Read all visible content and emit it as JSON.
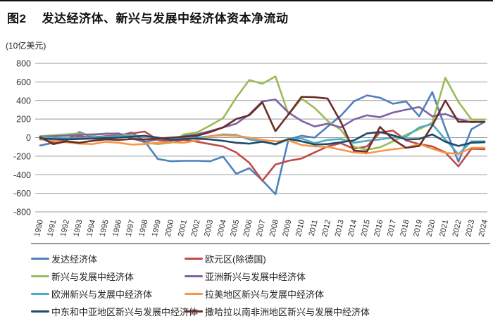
{
  "figure": {
    "label": "图2",
    "title": "发达经济体、新兴与发展中经济体资本净流动",
    "unit": "(10亿美元)"
  },
  "chart_data": {
    "type": "line",
    "title": "发达经济体、新兴与发展中经济体资本净流动",
    "unit": "10亿美元",
    "x": [
      1990,
      1991,
      1992,
      1993,
      1994,
      1995,
      1996,
      1997,
      1998,
      1999,
      2000,
      2001,
      2002,
      2003,
      2004,
      2005,
      2006,
      2007,
      2008,
      2009,
      2010,
      2011,
      2012,
      2013,
      2014,
      2015,
      2016,
      2017,
      2018,
      2019,
      2020,
      2021,
      2022,
      2023,
      2024
    ],
    "ylim": [
      -800,
      800
    ],
    "ytick_step": 200,
    "grid": true,
    "legend_position": "bottom",
    "axis_color": "#595959",
    "grid_color": "#9a9a9a",
    "series": [
      {
        "name": "发达经济体",
        "color": "#4f81bd",
        "values": [
          -85,
          -55,
          -25,
          60,
          5,
          15,
          20,
          55,
          -40,
          -230,
          -255,
          -250,
          -250,
          -255,
          -205,
          -390,
          -330,
          -460,
          -610,
          -20,
          20,
          0,
          120,
          235,
          390,
          455,
          430,
          365,
          390,
          230,
          490,
          100,
          -260,
          90,
          170
        ]
      },
      {
        "name": "欧元区(除德国)",
        "color": "#be4b48",
        "values": [
          0,
          -45,
          -15,
          15,
          0,
          15,
          25,
          45,
          65,
          -25,
          -45,
          -25,
          -45,
          -70,
          -95,
          -160,
          -270,
          -465,
          -290,
          -250,
          -225,
          -160,
          -95,
          -60,
          -120,
          -95,
          55,
          75,
          -30,
          -70,
          -95,
          -160,
          -310,
          -120,
          -125
        ]
      },
      {
        "name": "新兴与发展中经济体",
        "color": "#9bbb59",
        "values": [
          15,
          25,
          35,
          45,
          25,
          45,
          40,
          20,
          -55,
          -70,
          -55,
          35,
          55,
          130,
          210,
          430,
          620,
          580,
          660,
          250,
          420,
          320,
          180,
          85,
          -100,
          -130,
          -105,
          -40,
          30,
          90,
          160,
          645,
          385,
          195,
          195
        ]
      },
      {
        "name": "亚洲新兴与发展中经济体",
        "color": "#7e62a1",
        "values": [
          10,
          15,
          20,
          30,
          35,
          40,
          45,
          -10,
          -45,
          -20,
          -20,
          15,
          35,
          70,
          110,
          150,
          250,
          390,
          410,
          270,
          180,
          120,
          150,
          110,
          195,
          240,
          220,
          270,
          300,
          330,
          230,
          255,
          200,
          165,
          170
        ]
      },
      {
        "name": "欧洲新兴与发展中经济体",
        "color": "#4aacc5",
        "values": [
          10,
          0,
          -10,
          -5,
          0,
          10,
          15,
          20,
          15,
          0,
          -15,
          -10,
          0,
          15,
          35,
          30,
          -20,
          -40,
          -75,
          -20,
          -10,
          -60,
          -25,
          -15,
          -55,
          -35,
          -20,
          0,
          10,
          110,
          145,
          -20,
          -180,
          -40,
          -40
        ]
      },
      {
        "name": "拉美地区新兴与发展中经济体",
        "color": "#f79646",
        "values": [
          -20,
          -35,
          -50,
          -65,
          -70,
          -45,
          -55,
          -75,
          -70,
          -55,
          -50,
          -55,
          -30,
          15,
          25,
          20,
          0,
          -25,
          -40,
          -30,
          -80,
          -95,
          -100,
          -130,
          -160,
          -170,
          -145,
          -125,
          -110,
          -70,
          -120,
          -165,
          -175,
          -110,
          -110
        ]
      },
      {
        "name": "中东和中亚地区新兴与发展中经济体",
        "color": "#1f4a68",
        "values": [
          -10,
          -15,
          -20,
          -15,
          -10,
          -5,
          0,
          10,
          20,
          0,
          -25,
          -15,
          -10,
          -20,
          -35,
          -55,
          -65,
          -45,
          -70,
          -15,
          -40,
          -75,
          -70,
          -50,
          -30,
          45,
          60,
          25,
          -20,
          -15,
          35,
          -45,
          -90,
          -55,
          -50
        ]
      },
      {
        "name": "撒哈拉以南非洲地区新兴与发展中经济体",
        "color": "#6b2c28",
        "values": [
          5,
          -70,
          -40,
          -55,
          -35,
          -20,
          -25,
          -15,
          -20,
          -10,
          0,
          10,
          20,
          60,
          110,
          200,
          240,
          380,
          70,
          250,
          440,
          435,
          420,
          170,
          -140,
          -150,
          115,
          -20,
          -110,
          -90,
          130,
          400,
          170,
          170,
          170
        ]
      }
    ]
  }
}
